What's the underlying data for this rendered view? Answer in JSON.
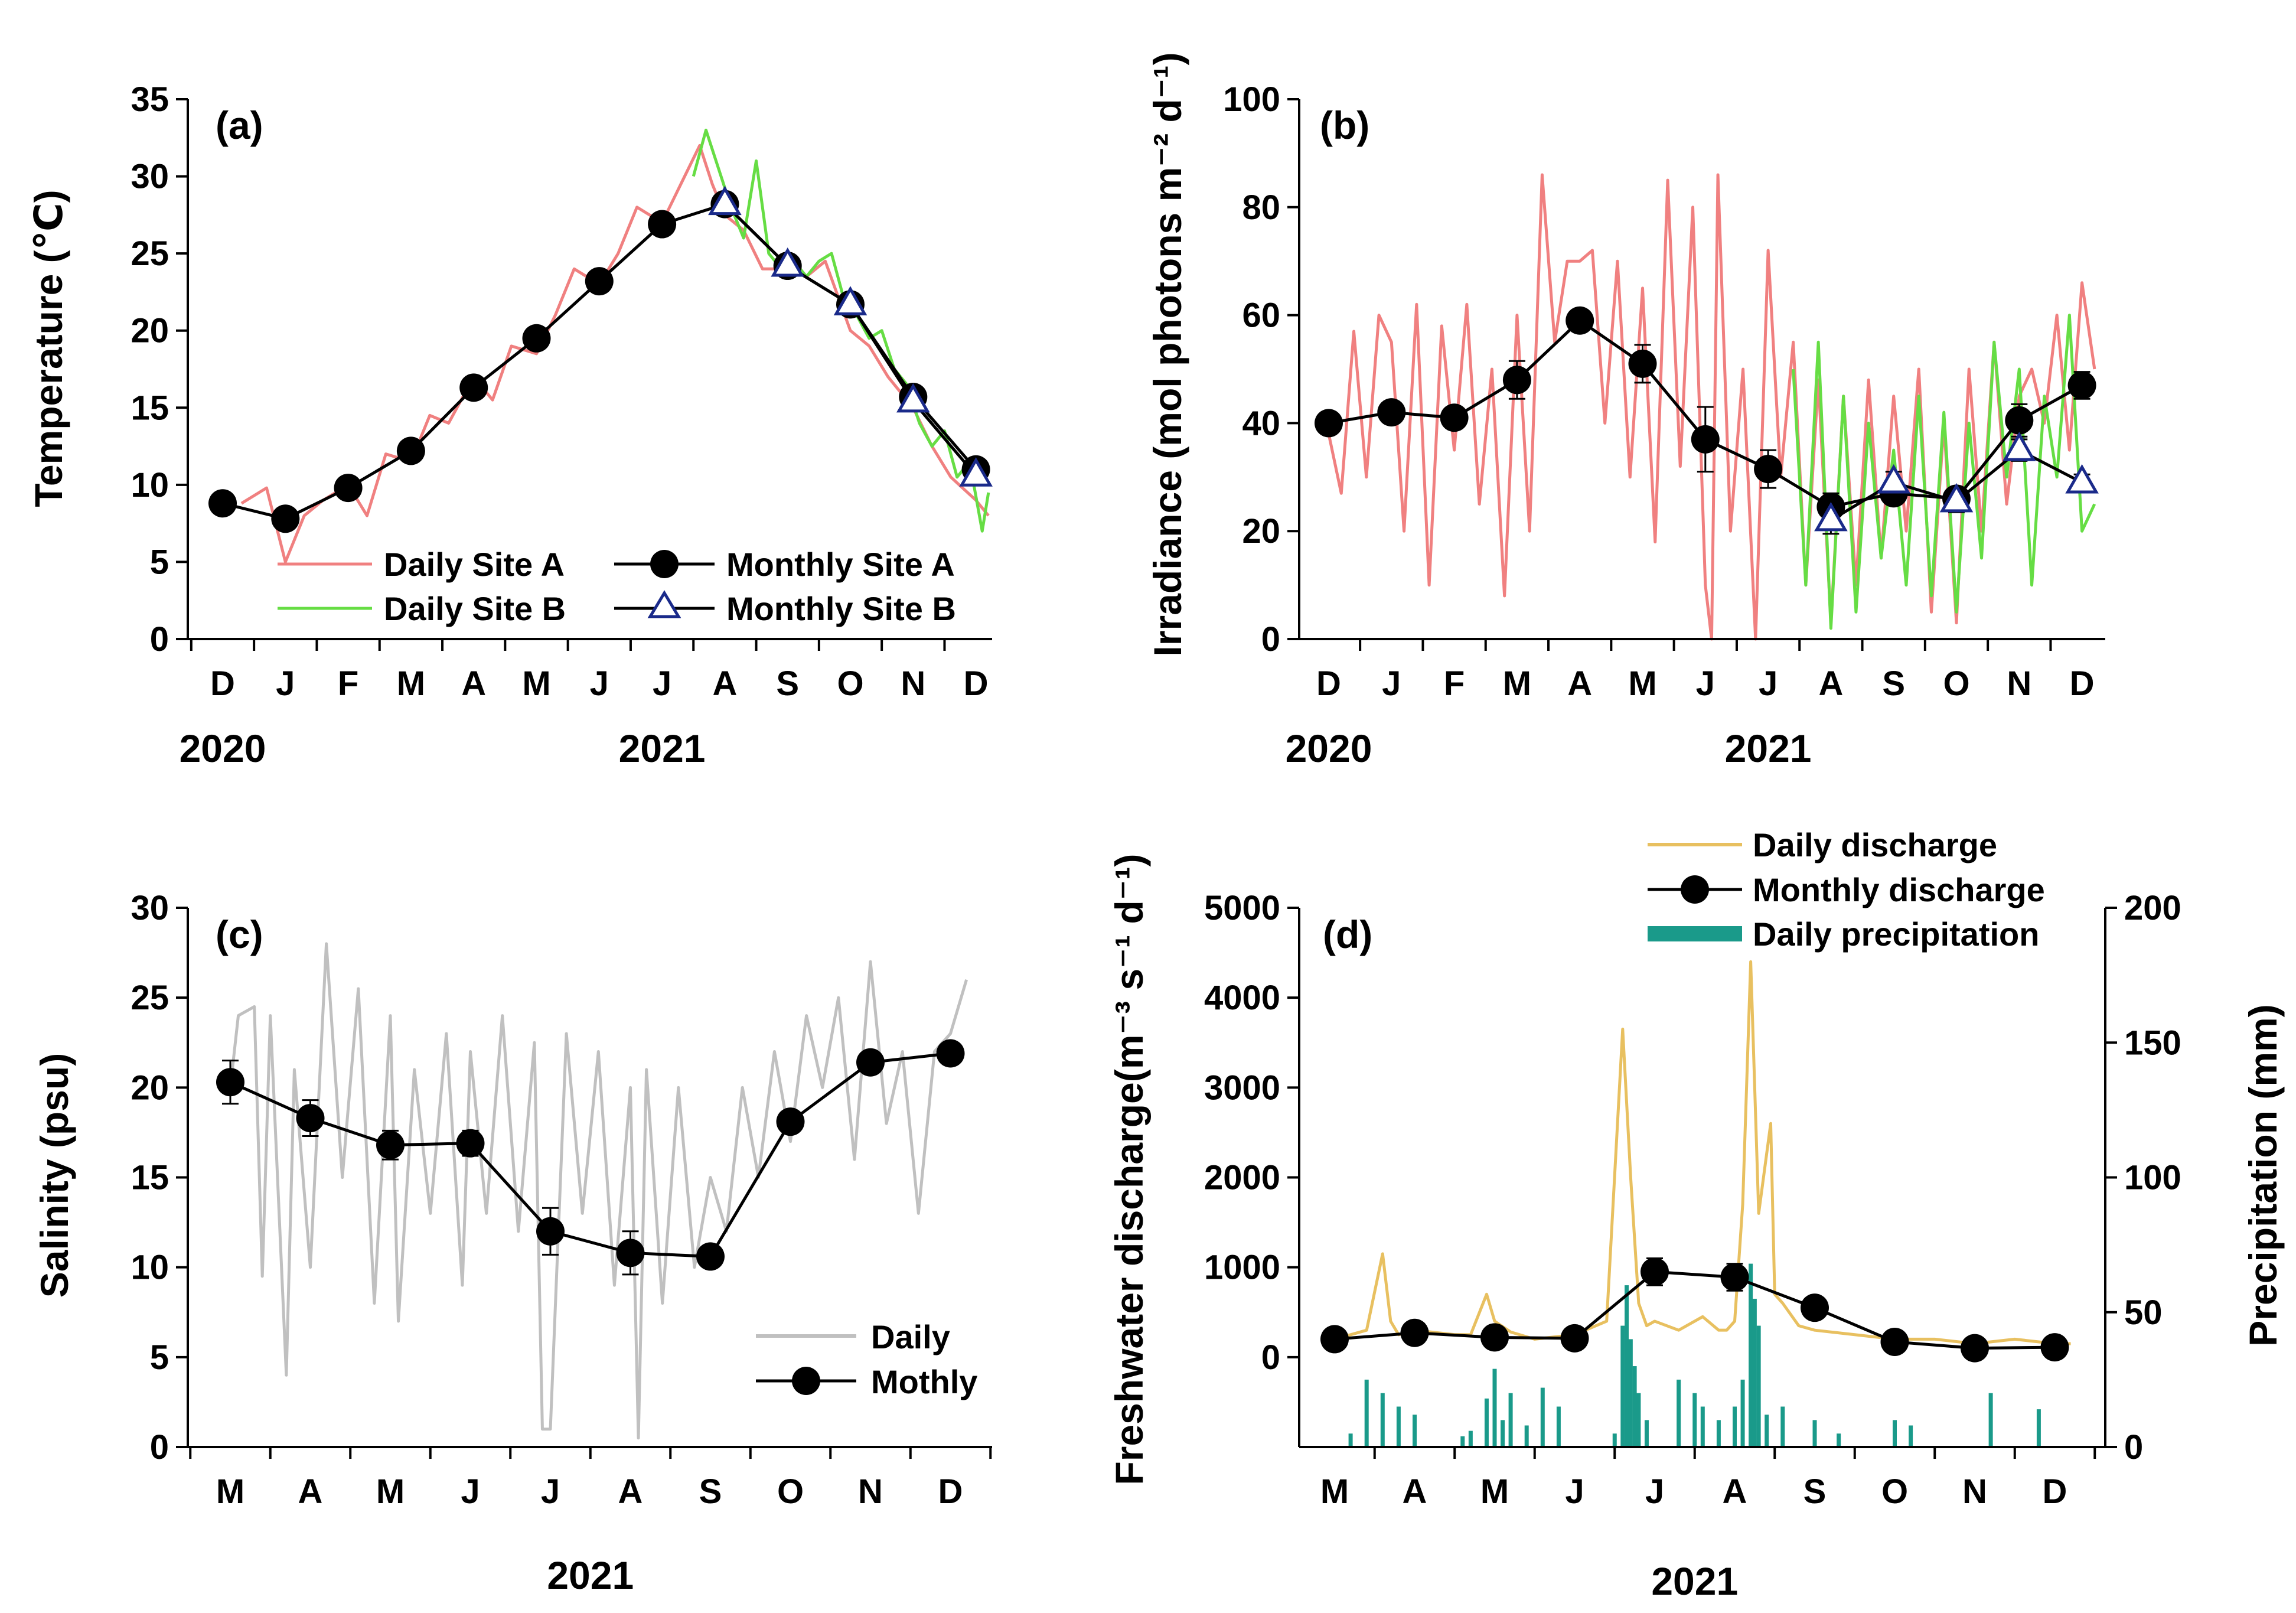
{
  "chart_data": [
    {
      "id": "a",
      "type": "line",
      "panel_label": "(a)",
      "ylabel": "Temperature (℃)",
      "ylim": [
        0,
        35
      ],
      "yticks": [
        0,
        5,
        10,
        15,
        20,
        25,
        30,
        35
      ],
      "categories": [
        "D",
        "J",
        "F",
        "M",
        "A",
        "M",
        "J",
        "J",
        "A",
        "S",
        "O",
        "N",
        "D"
      ],
      "year_labels": [
        {
          "text": "2020",
          "at": 0
        },
        {
          "text": "2021",
          "at": 7
        }
      ],
      "legend": [
        "Daily Site A",
        "Daily Site B",
        "Monthly Site A",
        "Monthly Site B"
      ],
      "series": [
        {
          "name": "Monthly Site A",
          "kind": "monthly",
          "marker": "circle",
          "x": [
            0,
            1,
            2,
            3,
            4,
            5,
            6,
            7,
            8,
            9,
            10,
            11,
            12
          ],
          "values": [
            8.8,
            7.8,
            9.8,
            12.2,
            16.3,
            19.5,
            23.2,
            26.9,
            28.2,
            24.2,
            21.7,
            15.7,
            11.0
          ]
        },
        {
          "name": "Monthly Site B",
          "kind": "monthly",
          "marker": "triangle",
          "x": [
            8,
            9,
            10,
            11,
            12
          ],
          "values": [
            28.2,
            24.2,
            21.7,
            15.4,
            10.6
          ]
        },
        {
          "name": "Daily Site A",
          "kind": "daily",
          "color": "#f08080",
          "x": [
            0.3,
            0.7,
            1.0,
            1.3,
            1.6,
            2.0,
            2.3,
            2.6,
            3.0,
            3.3,
            3.6,
            4.0,
            4.3,
            4.6,
            5.0,
            5.3,
            5.6,
            6.0,
            6.3,
            6.6,
            7.0,
            7.3,
            7.6,
            7.8,
            8.0,
            8.3,
            8.6,
            9.0,
            9.3,
            9.6,
            10.0,
            10.3,
            10.6,
            11.0,
            11.3,
            11.6,
            12.0,
            12.2
          ],
          "values": [
            8.8,
            9.8,
            5.0,
            8.0,
            9.0,
            10.0,
            8.0,
            12.0,
            11.5,
            14.5,
            14.0,
            17.0,
            15.5,
            19.0,
            18.5,
            21.0,
            24.0,
            23.0,
            25.0,
            28.0,
            27.0,
            29.5,
            32.0,
            29.5,
            27.5,
            26.5,
            24.0,
            24.0,
            23.5,
            24.5,
            20.0,
            19.0,
            17.0,
            15.0,
            12.5,
            10.5,
            9.0,
            8.0
          ]
        },
        {
          "name": "Daily Site B",
          "kind": "daily",
          "color": "#66dd44",
          "x": [
            7.5,
            7.7,
            7.9,
            8.1,
            8.3,
            8.5,
            8.7,
            8.9,
            9.1,
            9.3,
            9.5,
            9.7,
            9.9,
            10.1,
            10.3,
            10.5,
            10.7,
            10.9,
            11.1,
            11.3,
            11.5,
            11.7,
            11.9,
            12.1,
            12.2
          ],
          "values": [
            30.0,
            33.0,
            30.5,
            28.0,
            26.0,
            31.0,
            25.0,
            24.0,
            24.5,
            23.5,
            24.5,
            25.0,
            22.0,
            21.0,
            19.5,
            20.0,
            17.5,
            16.5,
            14.0,
            12.5,
            13.5,
            10.5,
            11.5,
            7.0,
            9.5
          ]
        }
      ]
    },
    {
      "id": "b",
      "type": "line",
      "panel_label": "(b)",
      "ylabel": "Irradiance (mol photons m⁻² d⁻¹)",
      "ylim": [
        0,
        100
      ],
      "yticks": [
        0,
        20,
        40,
        60,
        80,
        100
      ],
      "categories": [
        "D",
        "J",
        "F",
        "M",
        "A",
        "M",
        "J",
        "J",
        "A",
        "S",
        "O",
        "N",
        "D"
      ],
      "year_labels": [
        {
          "text": "2020",
          "at": 0
        },
        {
          "text": "2021",
          "at": 7
        }
      ],
      "series": [
        {
          "name": "Monthly Site A",
          "kind": "monthly",
          "marker": "circle",
          "x": [
            0,
            1,
            2,
            3,
            4,
            5,
            6,
            7,
            8,
            9,
            10,
            11,
            12
          ],
          "values": [
            40,
            42,
            41,
            48,
            59,
            51,
            37,
            31.5,
            24.5,
            27,
            26,
            40.5,
            47
          ],
          "err": [
            2,
            2,
            2,
            3.5,
            2,
            3.5,
            6,
            3.5,
            2.5,
            2,
            2,
            3,
            2.5
          ]
        },
        {
          "name": "Monthly Site B",
          "kind": "monthly",
          "marker": "triangle",
          "x": [
            8,
            9,
            10,
            11,
            12
          ],
          "values": [
            22,
            29,
            25.5,
            35,
            29
          ],
          "err": [
            2.5,
            2,
            2,
            2,
            1.5
          ]
        },
        {
          "name": "Daily Site A",
          "kind": "daily",
          "color": "#f08080",
          "x": [
            0.0,
            0.2,
            0.4,
            0.6,
            0.8,
            1.0,
            1.2,
            1.4,
            1.6,
            1.8,
            2.0,
            2.2,
            2.4,
            2.6,
            2.8,
            3.0,
            3.2,
            3.4,
            3.6,
            3.8,
            4.0,
            4.2,
            4.4,
            4.6,
            4.8,
            5.0,
            5.2,
            5.4,
            5.6,
            5.8,
            6.0,
            6.1,
            6.2,
            6.4,
            6.6,
            6.8,
            7.0,
            7.2,
            7.4,
            7.6,
            7.8,
            8.0,
            8.2,
            8.4,
            8.6,
            8.8,
            9.0,
            9.2,
            9.4,
            9.6,
            9.8,
            10.0,
            10.2,
            10.4,
            10.6,
            10.8,
            11.0,
            11.2,
            11.4,
            11.6,
            11.8,
            12.0,
            12.2
          ],
          "values": [
            38,
            27,
            57,
            30,
            60,
            55,
            20,
            62,
            10,
            58,
            35,
            62,
            25,
            50,
            8,
            60,
            20,
            86,
            55,
            70,
            70,
            72,
            40,
            70,
            30,
            65,
            18,
            85,
            32,
            80,
            10,
            0,
            86,
            20,
            50,
            0,
            72,
            30,
            55,
            10,
            48,
            3,
            45,
            10,
            48,
            15,
            45,
            20,
            50,
            5,
            40,
            3,
            50,
            20,
            55,
            25,
            45,
            50,
            40,
            60,
            35,
            66,
            50
          ]
        },
        {
          "name": "Daily Site B",
          "kind": "daily",
          "color": "#66dd44",
          "x": [
            7.4,
            7.6,
            7.8,
            8.0,
            8.2,
            8.4,
            8.6,
            8.8,
            9.0,
            9.2,
            9.4,
            9.6,
            9.8,
            10.0,
            10.2,
            10.4,
            10.6,
            10.8,
            11.0,
            11.2,
            11.4,
            11.6,
            11.8,
            12.0,
            12.2
          ],
          "values": [
            50,
            10,
            55,
            2,
            45,
            5,
            40,
            15,
            35,
            10,
            45,
            8,
            42,
            5,
            40,
            15,
            55,
            30,
            50,
            10,
            45,
            30,
            60,
            20,
            25
          ]
        }
      ]
    },
    {
      "id": "c",
      "type": "line",
      "panel_label": "(c)",
      "ylabel": "Salinity (psu)",
      "ylim": [
        0,
        30
      ],
      "yticks": [
        0,
        5,
        10,
        15,
        20,
        25,
        30
      ],
      "categories": [
        "M",
        "A",
        "M",
        "J",
        "J",
        "A",
        "S",
        "O",
        "N",
        "D"
      ],
      "year_labels": [
        {
          "text": "2021",
          "at": 4.5
        }
      ],
      "legend": [
        "Daily",
        "Mothly"
      ],
      "series": [
        {
          "name": "Mothly",
          "kind": "monthly",
          "marker": "circle",
          "x": [
            0,
            1,
            2,
            3,
            4,
            5,
            6,
            7,
            8,
            9
          ],
          "values": [
            20.3,
            18.3,
            16.8,
            16.9,
            12.0,
            10.8,
            10.6,
            18.1,
            21.4,
            21.9
          ],
          "err": [
            1.2,
            1.0,
            0.8,
            0.7,
            1.3,
            1.2,
            0.5,
            0.6,
            0.6,
            0.5
          ]
        },
        {
          "name": "Daily",
          "kind": "daily",
          "color": "#c0c0c0",
          "x": [
            0.0,
            0.1,
            0.3,
            0.4,
            0.5,
            0.7,
            0.8,
            1.0,
            1.2,
            1.4,
            1.6,
            1.8,
            2.0,
            2.1,
            2.3,
            2.5,
            2.7,
            2.9,
            3.0,
            3.2,
            3.4,
            3.6,
            3.8,
            3.9,
            4.0,
            4.2,
            4.4,
            4.6,
            4.8,
            5.0,
            5.1,
            5.2,
            5.4,
            5.6,
            5.8,
            6.0,
            6.2,
            6.4,
            6.6,
            6.8,
            7.0,
            7.2,
            7.4,
            7.6,
            7.8,
            8.0,
            8.2,
            8.4,
            8.6,
            8.8,
            9.0,
            9.2
          ],
          "values": [
            20,
            24,
            24.5,
            9.5,
            24,
            4,
            21,
            10,
            28,
            15,
            25.5,
            8,
            24,
            7,
            21,
            13,
            23,
            9,
            22,
            13,
            24,
            12,
            22.5,
            1,
            1,
            23,
            13,
            22,
            9,
            20,
            0.5,
            21,
            8,
            20,
            10,
            15,
            12,
            20,
            15,
            22,
            17,
            24,
            20,
            25,
            16,
            27,
            18,
            22,
            13,
            22,
            23,
            26
          ]
        }
      ]
    },
    {
      "id": "d",
      "type": "line",
      "panel_label": "(d)",
      "ylabel": "Freshwater discharge(m⁻³ s⁻¹ d⁻¹)",
      "y2label": "Precipitation (mm)",
      "ylim": [
        -1000,
        5000
      ],
      "yticks": [
        0,
        1000,
        2000,
        3000,
        4000,
        5000
      ],
      "y2lim": [
        0,
        200
      ],
      "y2ticks": [
        0,
        50,
        100,
        150,
        200
      ],
      "categories": [
        "M",
        "A",
        "M",
        "J",
        "J",
        "A",
        "S",
        "O",
        "N",
        "D"
      ],
      "year_labels": [
        {
          "text": "2021",
          "at": 4.5
        }
      ],
      "legend": [
        "Daily discharge",
        "Monthly discharge",
        "Daily precipitation"
      ],
      "series": [
        {
          "name": "Monthly discharge",
          "kind": "monthly",
          "marker": "circle",
          "x": [
            0,
            1,
            2,
            3,
            4,
            5,
            6,
            7,
            8,
            9
          ],
          "values": [
            200,
            270,
            220,
            210,
            950,
            890,
            550,
            170,
            100,
            110
          ],
          "err": [
            40,
            40,
            40,
            40,
            150,
            150,
            60,
            40,
            30,
            30
          ]
        },
        {
          "name": "Daily discharge",
          "kind": "daily",
          "color": "#e8c060",
          "x": [
            0.0,
            0.4,
            0.6,
            0.7,
            0.8,
            1.0,
            1.5,
            1.7,
            1.9,
            2.0,
            2.2,
            2.5,
            3.0,
            3.4,
            3.6,
            3.7,
            3.8,
            3.9,
            4.0,
            4.3,
            4.6,
            4.8,
            4.9,
            5.0,
            5.1,
            5.2,
            5.3,
            5.45,
            5.5,
            5.6,
            5.8,
            6.0,
            6.5,
            7.0,
            7.5,
            8.0,
            8.5,
            9.0,
            9.2
          ],
          "values": [
            200,
            300,
            1150,
            400,
            250,
            300,
            250,
            250,
            700,
            400,
            280,
            200,
            250,
            400,
            3650,
            2000,
            600,
            350,
            400,
            300,
            450,
            300,
            300,
            400,
            1700,
            4400,
            1600,
            2600,
            700,
            600,
            350,
            300,
            250,
            200,
            200,
            150,
            200,
            150,
            150
          ]
        },
        {
          "name": "Daily precipitation",
          "kind": "bars",
          "color": "#1a9a8a",
          "x": [
            0.2,
            0.4,
            0.6,
            0.8,
            1.0,
            1.6,
            1.7,
            1.9,
            2.0,
            2.1,
            2.2,
            2.4,
            2.6,
            2.8,
            3.5,
            3.6,
            3.65,
            3.7,
            3.75,
            3.8,
            3.9,
            4.3,
            4.5,
            4.6,
            4.8,
            5.0,
            5.1,
            5.2,
            5.25,
            5.3,
            5.4,
            5.6,
            6.0,
            6.3,
            7.0,
            7.2,
            8.2,
            8.8
          ],
          "values": [
            5,
            25,
            20,
            15,
            12,
            4,
            6,
            18,
            29,
            10,
            20,
            8,
            22,
            15,
            5,
            45,
            60,
            40,
            30,
            20,
            10,
            25,
            20,
            15,
            10,
            15,
            25,
            68,
            55,
            45,
            12,
            15,
            10,
            5,
            10,
            8,
            20,
            14
          ]
        }
      ]
    }
  ]
}
